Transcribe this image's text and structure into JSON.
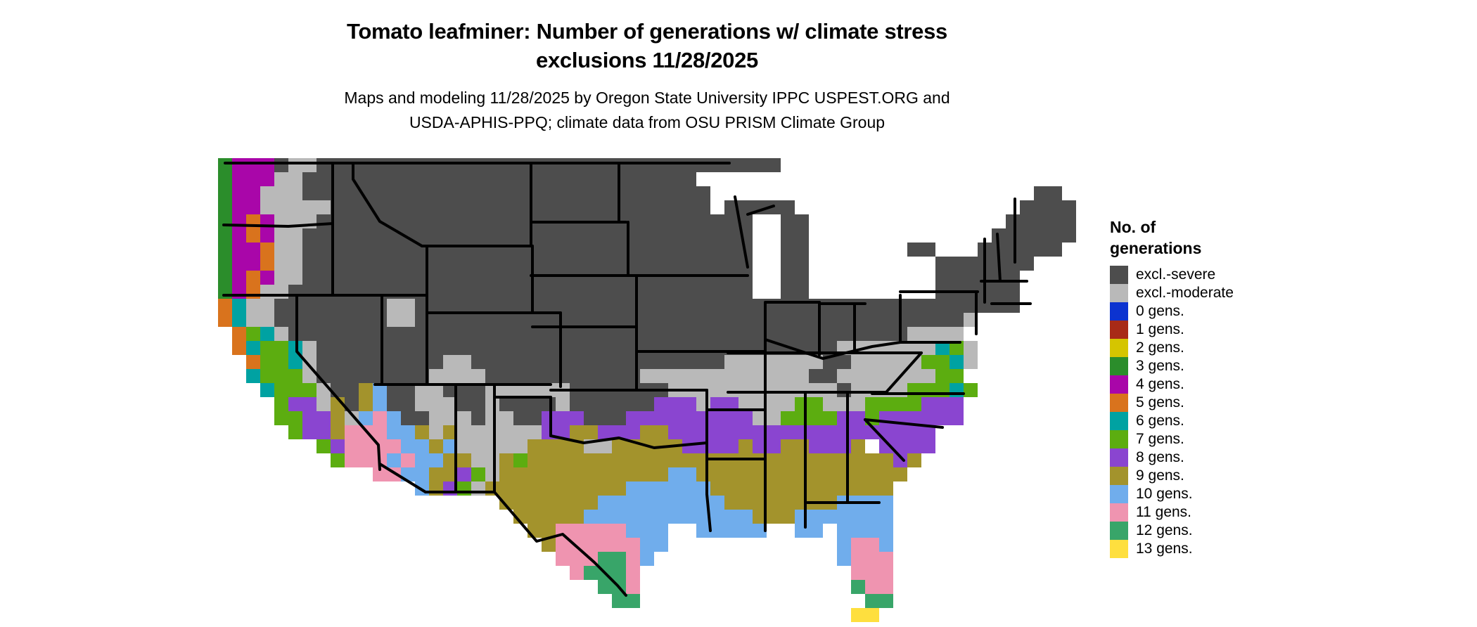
{
  "title": {
    "line1": "Tomato leafminer: Number of generations w/ climate stress",
    "line2": "exclusions 11/28/2025"
  },
  "subtitle": {
    "line1": "Maps and modeling 11/28/2025 by Oregon State University IPPC USPEST.ORG and",
    "line2": "USDA-APHIS-PPQ; climate data from OSU PRISM Climate Group"
  },
  "legend": {
    "title_line1": "No. of",
    "title_line2": "generations",
    "items": [
      {
        "key": "S",
        "label": "excl.-severe",
        "color": "#4d4d4d"
      },
      {
        "key": "M",
        "label": "excl.-moderate",
        "color": "#b9b9b9"
      },
      {
        "key": "0",
        "label": "0 gens.",
        "color": "#0c33d0"
      },
      {
        "key": "1",
        "label": "1 gens.",
        "color": "#a82a17"
      },
      {
        "key": "2",
        "label": "2 gens.",
        "color": "#d5c500"
      },
      {
        "key": "3",
        "label": "3 gens.",
        "color": "#2b8d2b"
      },
      {
        "key": "4",
        "label": "4 gens.",
        "color": "#a906a9"
      },
      {
        "key": "5",
        "label": "5 gens.",
        "color": "#d9731d"
      },
      {
        "key": "6",
        "label": "6 gens.",
        "color": "#00a2a2"
      },
      {
        "key": "7",
        "label": "7 gens.",
        "color": "#5cad10"
      },
      {
        "key": "8",
        "label": "8 gens.",
        "color": "#8a45d0"
      },
      {
        "key": "9",
        "label": "9 gens.",
        "color": "#a3932c"
      },
      {
        "key": "a",
        "label": "10 gens.",
        "color": "#70adec"
      },
      {
        "key": "b",
        "label": "11 gens.",
        "color": "#ef94b0"
      },
      {
        "key": "c",
        "label": "12 gens.",
        "color": "#38a569"
      },
      {
        "key": "d",
        "label": "13 gens.",
        "color": "#fedf3e"
      }
    ]
  },
  "map": {
    "type": "choropleth-raster",
    "region": "Contiguous United States",
    "legend_key_for_cells": "legend.items[].key ('.' = no data / water)",
    "grid": [
      "3444SMMSSSSSSSSSSSSSSSSSSSSSSSSSSSSSSSSS.........................",
      "3444MMSSSSSSSSSSSSSSSSSSSSSSSSSSSS............................",
      "344MMMSSSSSSSSSSSSSSSSSSSSSSSSSSSSS.......................SS..",
      "344MMMMMSSSSSSSSSSSSSSSSSSSSSSSSSSS.SSSSS................SSSS.",
      "3454MMMSSSSSSSSSSSSSSSSSSSSSSSSSSSSSSS..SS..............SSSSS.",
      "3454MMSSSSSSSSSSSSSSSSSSSSSSSSSSSSSSSS..SS.............SSSSSS.",
      "3445MMSSSSSSSSSSSSSSSSSSSSSSSSSSSSSSSS..SS.......SS...SSSSSS..",
      "3445MMSSSSSSSSSSSSSSSSSSSSSSSSSSSSSSSS..SS.........SSSSSSS....",
      "3454MMSSSSSSSSSSSSSSSSSSSSSSSSSSSSSSSS..SS.........SSSSSS.....",
      "345MMSSSSSSSSSSSSSSSSSSSSSSSSSSSSSSSSS..SS.........SSSSSS.....",
      "56MMSSSSSSSSMMSSSSSSSSSSSSSSSSSSSSSSSSSSSSSSSSSSSSSSSSSSS.....",
      "56MMSSSSSSSSMMSSSSSSSSSSSSSSSSSSSSSSSSSSSSSSSSSSSSSSSM......",
      ".576MSSSSSSSSSSSSSSSSSSSSSSSSSSSSSSSSSSSSSSSSSSSSMMMM........",
      ".56776MSSSSSSSSSSSSSSSSSSSSSSSSSSSSSSSSSSSSSMMMMMMM67M........",
      "..5776MSSSSSSSSSMMSSSSSSSSSSSSSSSSSSMMMMMMMSSMMMMM776M........",
      "..6777MSSSSSSSSMMMMSSSSSSSSSSSMMMMMMMMMMMMSSMMMMMMM77.........",
      "...6777MSS9aSSMMSSSMMMMMMSSSSSSSMMMMMMMMMMMMSMMMM77767........",
      "....788M9S9aSSMMMSSMSSSSMSSSSSS888M88MMMM77MMM7777888.........",
      "....77889MabaSSMMMSMMSS888SSS888888888MM7777887888888.........",
      ".....7889bbbaa9M9MMMMMM8899888998888888888888888888...........",
      ".......78bbbbaa9aMMMMM9999MM999998888988998889 8888............",
      "........7bbbabaa99MM979999999999999999999999999989.............",
      "...........bbaa9987M999999999999aa999999999999999.............",
      "..............a987M9999999999aaaaaa9999999999999..............",
      "....................9999999aaaaaaaaa99999999aaaa..............",
      ".....................99999aaaaaaaaaaaa999aaaaaaa..............",
      "......................99bbbbbaaa..aaaaa..aa.aaaa..............",
      ".......................9bbbbbbaa............abba..............",
      "........................bbbccba.............abbb..............",
      ".........................bcccb...............bbb..............",
      "...........................ccb...............cbb..............",
      "............................cc................cc..............",
      ".............................................dd..............."
    ]
  }
}
